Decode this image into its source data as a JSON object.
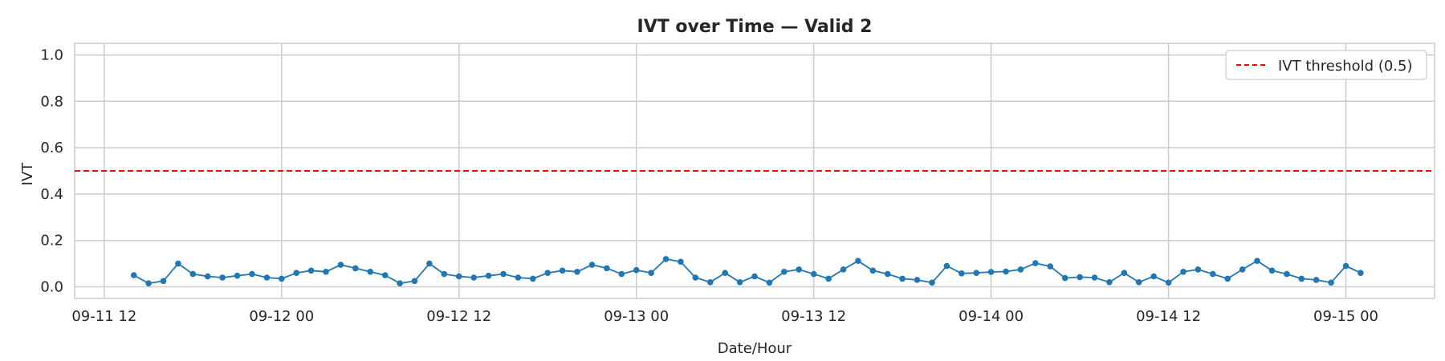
{
  "chart_data": {
    "type": "line",
    "title": "IVT over Time — Valid 2",
    "xlabel": "Date/Hour",
    "ylabel": "IVT",
    "ylim": [
      -0.05,
      1.05
    ],
    "xlim": [
      "2024-09-11T10:00",
      "2024-09-15T06:00"
    ],
    "x_tick_labels": [
      "09-11 12",
      "09-12 00",
      "09-12 12",
      "09-13 00",
      "09-13 12",
      "09-14 00",
      "09-14 12",
      "09-15 00"
    ],
    "x_ticks": [
      "2024-09-11T12:00",
      "2024-09-12T00:00",
      "2024-09-12T12:00",
      "2024-09-13T00:00",
      "2024-09-13T12:00",
      "2024-09-14T00:00",
      "2024-09-14T12:00",
      "2024-09-15T00:00"
    ],
    "y_ticks": [
      0.0,
      0.2,
      0.4,
      0.6,
      0.8,
      1.0
    ],
    "y_tick_labels": [
      "0.0",
      "0.2",
      "0.4",
      "0.6",
      "0.8",
      "1.0"
    ],
    "grid": true,
    "legend": "top-right",
    "x_start": "2024-09-11T14:00",
    "x_step_hours": 1,
    "series": [
      {
        "name": "IVT",
        "color": "#1f77b4",
        "values": [
          0.05,
          0.015,
          0.025,
          0.1,
          0.055,
          0.045,
          0.04,
          0.048,
          0.055,
          0.04,
          0.035,
          0.06,
          0.07,
          0.065,
          0.095,
          0.08,
          0.065,
          0.05,
          0.015,
          0.025,
          0.1,
          0.055,
          0.045,
          0.04,
          0.048,
          0.055,
          0.04,
          0.035,
          0.06,
          0.07,
          0.065,
          0.095,
          0.08,
          0.055,
          0.072,
          0.06,
          0.12,
          0.108,
          0.04,
          0.02,
          0.06,
          0.02,
          0.045,
          0.018,
          0.065,
          0.075,
          0.055,
          0.035,
          0.075,
          0.112,
          0.07,
          0.055,
          0.035,
          0.03,
          0.018,
          0.09,
          0.058,
          0.06,
          0.064,
          0.066,
          0.075,
          0.102,
          0.088,
          0.038,
          0.042,
          0.04,
          0.02,
          0.06,
          0.02,
          0.045,
          0.018,
          0.065,
          0.075,
          0.055,
          0.035,
          0.075,
          0.112,
          0.07,
          0.055,
          0.035,
          0.03,
          0.018,
          0.09,
          0.06
        ]
      }
    ],
    "threshold": {
      "name": "IVT threshold (0.5)",
      "value": 0.5,
      "color": "#ff0000",
      "style": "dashed"
    }
  }
}
